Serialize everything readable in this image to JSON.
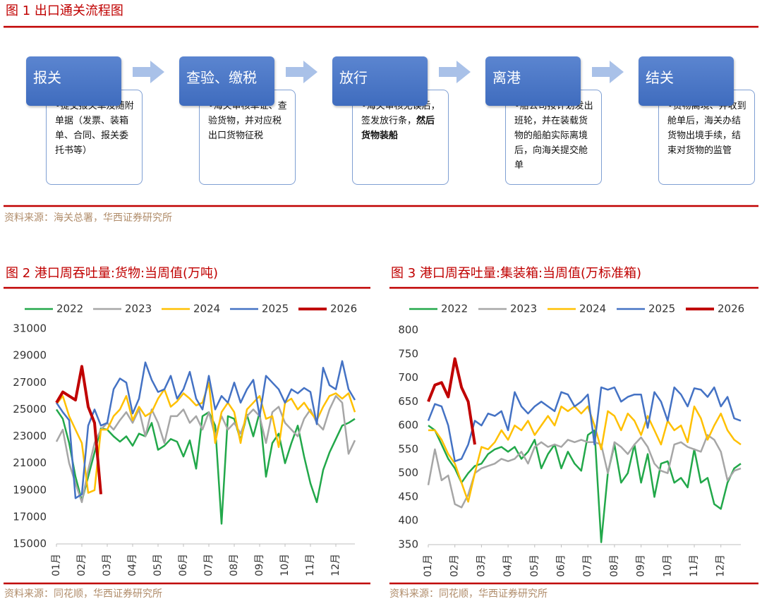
{
  "figure1": {
    "title": "图 1  出口通关流程图",
    "steps": [
      {
        "title": "报关",
        "text": "•提交报关单及随附单据（发票、装箱单、合同、报关委托书等）"
      },
      {
        "title": "查验、缴税",
        "text": "•海关审核单证、查验货物，并对应税出口货物征税"
      },
      {
        "title": "放行",
        "text": "•海关审核无误后，签发放行条，",
        "emphasis": "然后货物装船"
      },
      {
        "title": "离港",
        "text": "•船公司按计划发出班轮，并在装载货物的船舶实际离境后，向海关提交舱单"
      },
      {
        "title": "结关",
        "text": "•货物离境、并收到舱单后，海关办结货物出境手续，结束对货物的监管"
      }
    ],
    "source": "资料来源：海关总署，华西证券研究所"
  },
  "chart_data": [
    {
      "type": "line",
      "title": "图 2  港口周吞吐量:货物:当周值(万吨)",
      "source": "资料来源：同花顺，华西证券研究所",
      "legend": "top",
      "categories": [
        "01月",
        null,
        null,
        null,
        "02月",
        null,
        null,
        null,
        "03月",
        null,
        null,
        null,
        "04月",
        null,
        null,
        null,
        "05月",
        null,
        null,
        null,
        "06月",
        null,
        null,
        null,
        "07月",
        null,
        null,
        null,
        "08月",
        null,
        null,
        null,
        "09月",
        null,
        null,
        null,
        "10月",
        null,
        null,
        null,
        "11月",
        null,
        null,
        null,
        "12月",
        null,
        null,
        null
      ],
      "ylim": [
        15000,
        31000
      ],
      "yticks": [
        15000,
        17000,
        19000,
        21000,
        23000,
        25000,
        27000,
        29000,
        31000
      ],
      "series": [
        {
          "name": "2022",
          "color": "#22a84a",
          "values": [
            25000,
            24300,
            22500,
            20000,
            18200,
            20000,
            21800,
            23600,
            23500,
            23000,
            22600,
            23000,
            22300,
            23200,
            23000,
            24000,
            22000,
            22300,
            22800,
            22600,
            21500,
            22700,
            20600,
            24500,
            24800,
            23800,
            16500,
            24500,
            24300,
            22700,
            24600,
            23000,
            24800,
            20000,
            22500,
            23200,
            21000,
            22500,
            23800,
            21500,
            19500,
            18100,
            20500,
            21800,
            22800,
            23800,
            24000,
            24300
          ]
        },
        {
          "name": "2023",
          "color": "#a6a6a6",
          "values": [
            22600,
            23500,
            21000,
            19500,
            18100,
            20500,
            22500,
            23500,
            24000,
            23500,
            24200,
            24800,
            24000,
            25000,
            23000,
            25000,
            24000,
            22500,
            24500,
            24500,
            25000,
            24000,
            24500,
            23500,
            24800,
            23000,
            24500,
            23500,
            24000,
            23200,
            24500,
            25000,
            24500,
            22500,
            24800,
            25200,
            24000,
            23500,
            23000,
            24300,
            25000,
            24000,
            23500,
            25000,
            26000,
            25500,
            21700,
            22700
          ]
        },
        {
          "name": "2024",
          "color": "#ffc000",
          "values": [
            25400,
            26000,
            24500,
            23500,
            22500,
            18800,
            19000,
            23500,
            23500,
            24500,
            25000,
            26000,
            24200,
            25200,
            24500,
            24800,
            25800,
            26500,
            25200,
            25600,
            26200,
            25800,
            25300,
            25500,
            27000,
            22500,
            24800,
            25500,
            24800,
            22500,
            25000,
            25500,
            26000,
            24300,
            24500,
            22200,
            25500,
            25800,
            25000,
            25500,
            24800,
            24200,
            25200,
            26000,
            26200,
            25800,
            26200,
            24800
          ]
        },
        {
          "name": "2025",
          "color": "#4472c4",
          "values": [
            25500,
            24800,
            24200,
            18400,
            18700,
            23800,
            25000,
            23800,
            24000,
            26500,
            27300,
            27000,
            24700,
            25800,
            28500,
            27200,
            26300,
            26500,
            27500,
            25800,
            26500,
            27800,
            25800,
            25000,
            27500,
            25000,
            26000,
            25500,
            27000,
            25500,
            26500,
            27200,
            24500,
            27500,
            27000,
            26500,
            25500,
            26500,
            26200,
            26600,
            26300,
            23900,
            28100,
            26800,
            26500,
            28600,
            26500,
            25700
          ]
        },
        {
          "name": "2026",
          "color": "#c00000",
          "values": [
            25500,
            26300,
            26000,
            25700,
            28200,
            25200,
            24000,
            18700,
            null,
            null,
            null,
            null,
            null,
            null,
            null,
            null,
            null,
            null,
            null,
            null,
            null,
            null,
            null,
            null,
            null,
            null,
            null,
            null,
            null,
            null,
            null,
            null,
            null,
            null,
            null,
            null,
            null,
            null,
            null,
            null,
            null,
            null,
            null,
            null,
            null,
            null,
            null,
            null
          ]
        }
      ]
    },
    {
      "type": "line",
      "title": "图 3  港口周吞吐量:集装箱:当周值(万标准箱)",
      "source": "资料来源：同花顺，华西证券研究所",
      "legend": "top",
      "categories": [
        "01月",
        null,
        null,
        null,
        "02月",
        null,
        null,
        null,
        "03月",
        null,
        null,
        null,
        "04月",
        null,
        null,
        null,
        "05月",
        null,
        null,
        null,
        "06月",
        null,
        null,
        null,
        "07月",
        null,
        null,
        null,
        "08月",
        null,
        null,
        null,
        "09月",
        null,
        null,
        null,
        "10月",
        null,
        null,
        null,
        "11月",
        null,
        null,
        null,
        "12月",
        null,
        null,
        null
      ],
      "ylim": [
        350,
        800
      ],
      "yticks": [
        350,
        400,
        450,
        500,
        550,
        600,
        650,
        700,
        750,
        800
      ],
      "series": [
        {
          "name": "2022",
          "color": "#22a84a",
          "values": [
            600,
            590,
            560,
            530,
            510,
            480,
            500,
            515,
            520,
            540,
            550,
            555,
            545,
            555,
            530,
            545,
            570,
            510,
            540,
            560,
            510,
            545,
            520,
            505,
            580,
            590,
            355,
            500,
            560,
            480,
            500,
            560,
            480,
            540,
            450,
            520,
            525,
            480,
            490,
            470,
            550,
            480,
            490,
            435,
            425,
            480,
            510,
            520
          ]
        },
        {
          "name": "2023",
          "color": "#a6a6a6",
          "values": [
            475,
            550,
            485,
            495,
            435,
            428,
            455,
            500,
            510,
            515,
            520,
            530,
            525,
            530,
            545,
            520,
            555,
            565,
            555,
            560,
            555,
            570,
            565,
            570,
            565,
            565,
            560,
            500,
            565,
            555,
            540,
            560,
            575,
            555,
            520,
            505,
            500,
            560,
            565,
            555,
            550,
            545,
            580,
            570,
            545,
            485,
            505,
            510
          ]
        },
        {
          "name": "2024",
          "color": "#ffc000",
          "values": [
            590,
            590,
            570,
            540,
            520,
            480,
            440,
            500,
            555,
            550,
            565,
            590,
            570,
            600,
            590,
            610,
            580,
            600,
            620,
            600,
            640,
            630,
            640,
            625,
            640,
            600,
            550,
            630,
            620,
            590,
            625,
            610,
            580,
            620,
            590,
            560,
            610,
            590,
            600,
            565,
            640,
            615,
            570,
            600,
            625,
            590,
            570,
            560
          ]
        },
        {
          "name": "2025",
          "color": "#4472c4",
          "values": [
            610,
            645,
            640,
            600,
            525,
            530,
            560,
            610,
            600,
            625,
            620,
            630,
            590,
            670,
            640,
            625,
            640,
            650,
            640,
            630,
            670,
            665,
            640,
            650,
            665,
            560,
            680,
            675,
            680,
            650,
            660,
            665,
            665,
            595,
            670,
            650,
            610,
            680,
            665,
            640,
            678,
            675,
            660,
            680,
            640,
            660,
            615,
            610
          ]
        },
        {
          "name": "2026",
          "color": "#c00000",
          "values": [
            650,
            685,
            690,
            660,
            740,
            680,
            650,
            560,
            null,
            null,
            null,
            null,
            null,
            null,
            null,
            null,
            null,
            null,
            null,
            null,
            null,
            null,
            null,
            null,
            null,
            null,
            null,
            null,
            null,
            null,
            null,
            null,
            null,
            null,
            null,
            null,
            null,
            null,
            null,
            null,
            null,
            null,
            null,
            null,
            null,
            null,
            null,
            null
          ]
        }
      ]
    }
  ]
}
